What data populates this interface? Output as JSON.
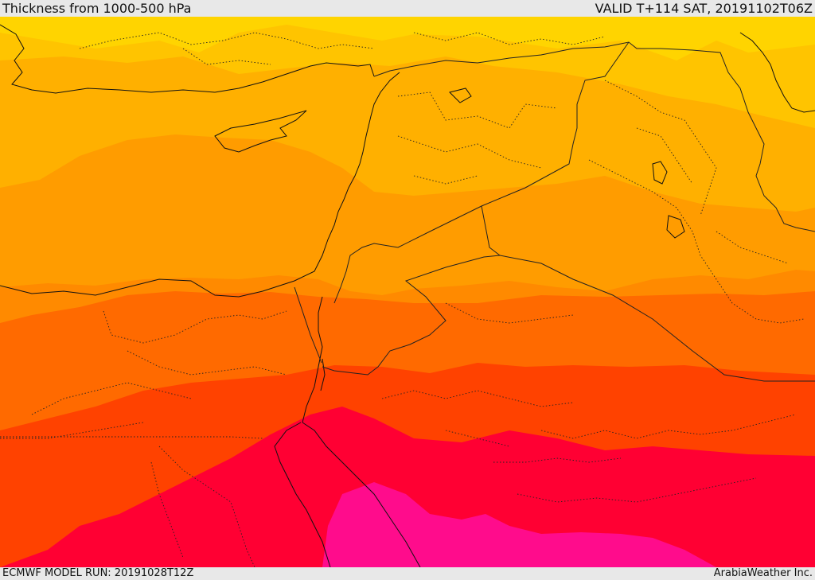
{
  "header": {
    "title": "Thickness from 1000-500 hPa",
    "valid": "VALID T+114 SAT, 20191102T06Z"
  },
  "footer": {
    "model_run": "ECMWF MODEL RUN: 20191028T12Z",
    "credit": "ArabiaWeather Inc."
  },
  "palette": {
    "band_1": "#ffd400",
    "band_2": "#ffc400",
    "band_3": "#ffb000",
    "band_4": "#ff9c00",
    "band_5": "#ff8a00",
    "band_6": "#ff6a00",
    "band_7": "#ff4200",
    "band_8": "#ff0033",
    "band_9": "#ff0c8c",
    "coastline": "#111111",
    "border": "#222222"
  }
}
